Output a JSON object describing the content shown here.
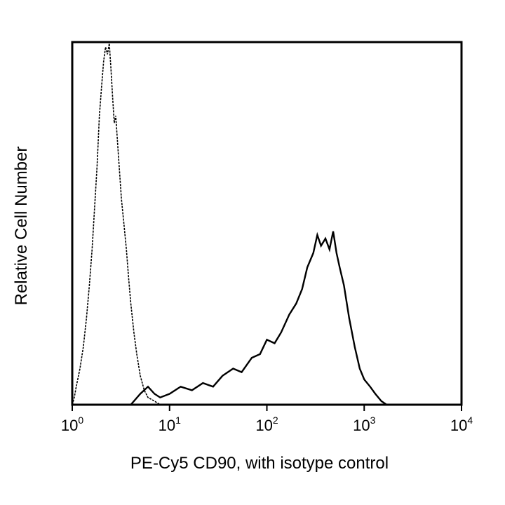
{
  "chart_data": {
    "type": "histogram",
    "title": "",
    "xlabel": "PE-Cy5 CD90, with isotype control",
    "ylabel": "Relative Cell Number",
    "x_scale": "log",
    "xlim": [
      1,
      10000
    ],
    "ylim": [
      0,
      1
    ],
    "x_ticks": [
      {
        "value": 1,
        "base": "10",
        "exp": "0"
      },
      {
        "value": 10,
        "base": "10",
        "exp": "1"
      },
      {
        "value": 100,
        "base": "10",
        "exp": "2"
      },
      {
        "value": 1000,
        "base": "10",
        "exp": "3"
      },
      {
        "value": 10000,
        "base": "10",
        "exp": "4"
      }
    ],
    "y_ticks": [],
    "grid": false,
    "legend": "none",
    "series": [
      {
        "style": "dotted",
        "color": "#000000",
        "points": [
          [
            1.0,
            0.0
          ],
          [
            1.05,
            0.02
          ],
          [
            1.1,
            0.05
          ],
          [
            1.2,
            0.1
          ],
          [
            1.3,
            0.16
          ],
          [
            1.4,
            0.24
          ],
          [
            1.5,
            0.33
          ],
          [
            1.6,
            0.43
          ],
          [
            1.7,
            0.55
          ],
          [
            1.8,
            0.66
          ],
          [
            1.9,
            0.8
          ],
          [
            2.0,
            0.88
          ],
          [
            2.1,
            0.95
          ],
          [
            2.2,
            0.99
          ],
          [
            2.3,
            0.97
          ],
          [
            2.4,
            1.0
          ],
          [
            2.5,
            0.93
          ],
          [
            2.6,
            0.85
          ],
          [
            2.7,
            0.78
          ],
          [
            2.8,
            0.8
          ],
          [
            3.0,
            0.68
          ],
          [
            3.2,
            0.57
          ],
          [
            3.4,
            0.5
          ],
          [
            3.6,
            0.43
          ],
          [
            3.8,
            0.35
          ],
          [
            4.0,
            0.28
          ],
          [
            4.3,
            0.2
          ],
          [
            4.6,
            0.14
          ],
          [
            5.0,
            0.08
          ],
          [
            5.5,
            0.04
          ],
          [
            6.0,
            0.02
          ],
          [
            7.0,
            0.01
          ],
          [
            8.0,
            0.0
          ]
        ]
      },
      {
        "style": "solid",
        "color": "#000000",
        "points": [
          [
            4.0,
            0.0
          ],
          [
            5.0,
            0.03
          ],
          [
            6.0,
            0.05
          ],
          [
            7.0,
            0.03
          ],
          [
            8.0,
            0.02
          ],
          [
            10,
            0.03
          ],
          [
            13,
            0.05
          ],
          [
            17,
            0.04
          ],
          [
            22,
            0.06
          ],
          [
            28,
            0.05
          ],
          [
            35,
            0.08
          ],
          [
            45,
            0.1
          ],
          [
            55,
            0.09
          ],
          [
            70,
            0.13
          ],
          [
            85,
            0.14
          ],
          [
            100,
            0.18
          ],
          [
            120,
            0.17
          ],
          [
            140,
            0.2
          ],
          [
            170,
            0.25
          ],
          [
            200,
            0.28
          ],
          [
            230,
            0.32
          ],
          [
            260,
            0.38
          ],
          [
            300,
            0.42
          ],
          [
            330,
            0.47
          ],
          [
            360,
            0.44
          ],
          [
            400,
            0.46
          ],
          [
            440,
            0.43
          ],
          [
            480,
            0.48
          ],
          [
            520,
            0.42
          ],
          [
            560,
            0.38
          ],
          [
            620,
            0.33
          ],
          [
            700,
            0.24
          ],
          [
            800,
            0.16
          ],
          [
            900,
            0.1
          ],
          [
            1000,
            0.07
          ],
          [
            1150,
            0.05
          ],
          [
            1300,
            0.03
          ],
          [
            1500,
            0.01
          ],
          [
            1700,
            0.0
          ]
        ]
      }
    ]
  }
}
